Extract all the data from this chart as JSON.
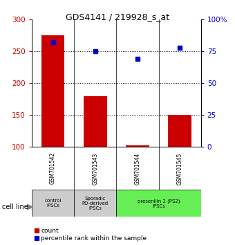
{
  "title": "GDS4141 / 219928_s_at",
  "samples": [
    "GSM701542",
    "GSM701543",
    "GSM701544",
    "GSM701545"
  ],
  "bar_values": [
    275,
    180,
    103,
    150
  ],
  "percentile_values": [
    82,
    75,
    69,
    78
  ],
  "ylim_left": [
    100,
    300
  ],
  "ylim_right": [
    0,
    100
  ],
  "yticks_left": [
    100,
    150,
    200,
    250,
    300
  ],
  "yticks_right": [
    0,
    25,
    50,
    75,
    100
  ],
  "bar_color": "#cc0000",
  "dot_color": "#0000cc",
  "bar_bottom": 100,
  "groups": [
    {
      "label": "control\nIPSCs",
      "span": [
        0,
        1
      ],
      "color": "#cccccc"
    },
    {
      "label": "Sporadic\nPD-derived\niPSCs",
      "span": [
        1,
        2
      ],
      "color": "#cccccc"
    },
    {
      "label": "presenilin 2 (PS2)\niPSCs",
      "span": [
        2,
        4
      ],
      "color": "#66ee55"
    }
  ],
  "cell_line_label": "cell line",
  "legend_count_label": "count",
  "legend_pct_label": "percentile rank within the sample",
  "grid_yticks": [
    150,
    200,
    250
  ],
  "background_color": "#ffffff",
  "plot_bg_color": "#ffffff"
}
